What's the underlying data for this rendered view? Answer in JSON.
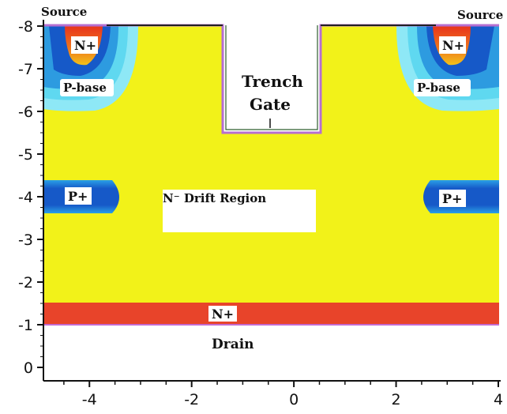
{
  "figure": {
    "source_left": "Source",
    "source_right": "Source",
    "trench_gate_line1": "Trench",
    "trench_gate_line2": "Gate",
    "pbase_left": "P-base",
    "pbase_right": "P-base",
    "nplus_left": "N+",
    "nplus_right": "N+",
    "pplus_left": "P+",
    "pplus_right": "P+",
    "drift_region": "N⁻ Drift Region",
    "nplus_bottom": "N+",
    "drain": "Drain"
  },
  "axes": {
    "x_ticks": [
      "-4",
      "-2",
      "0",
      "2",
      "4"
    ],
    "y_ticks": [
      "-8",
      "-7",
      "-6",
      "-5",
      "-4",
      "-3",
      "-2",
      "-1",
      "0"
    ],
    "x_range": [
      -4.9,
      4
    ],
    "y_range": [
      -8,
      0.5
    ]
  },
  "colors": {
    "drift": "#f2f219",
    "nplus_bottom": "#e8442a",
    "pbase_outer": "#5fd8f0",
    "pbase_mid": "#2d9be0",
    "pbase_inner": "#1659c8",
    "nplus_core": "#f05a1e",
    "pplus": "#1659c8",
    "gate_outline": "#b66fd0",
    "substrate_outline": "#8e5fb8"
  }
}
